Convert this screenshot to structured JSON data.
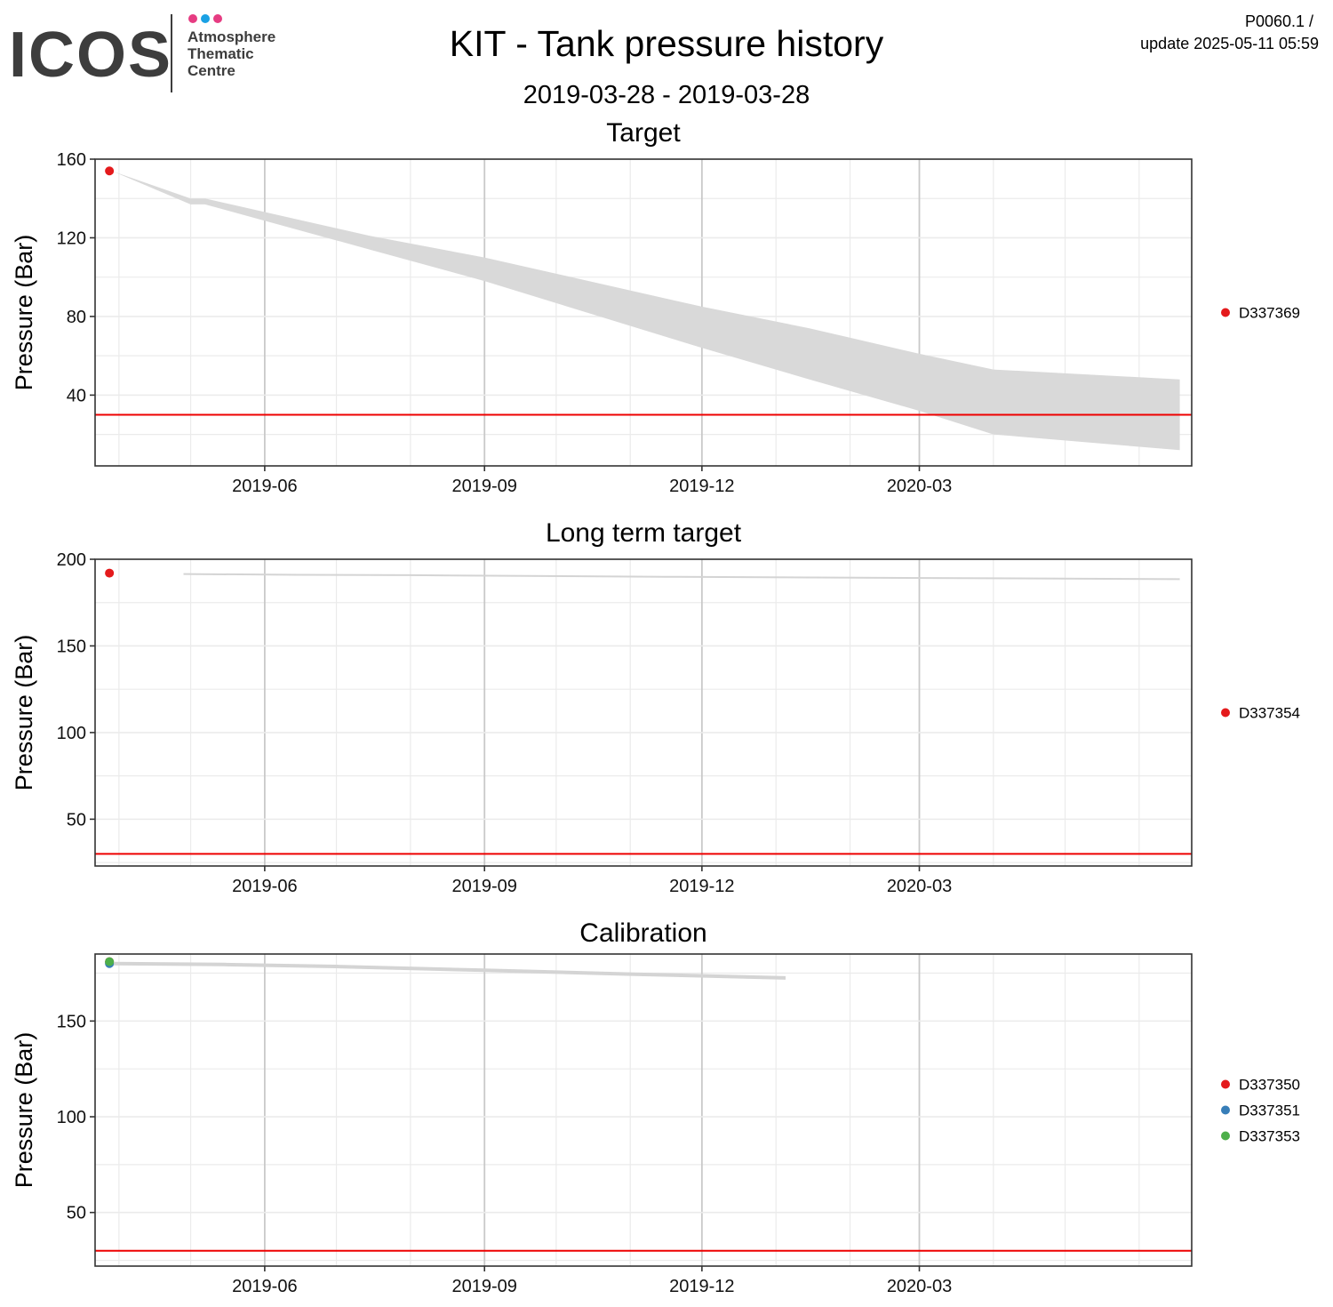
{
  "header": {
    "logo_text": "ICOS",
    "logo_sub": [
      "Atmosphere",
      "Thematic",
      "Centre"
    ],
    "logo_dot_colors": [
      "#e63c82",
      "#1aa1e4",
      "#e63c82"
    ],
    "title": "KIT - Tank pressure history",
    "subtitle": "2019-03-28 - 2019-03-28",
    "code": "P0060.1 /",
    "update": "update  2025-05-11 05:59"
  },
  "colors": {
    "threshold": "#ee0000",
    "band": "#d9d9d9",
    "grid_major": "#c9c9c9",
    "grid_minor": "#ebebeb"
  },
  "chart_data": [
    {
      "type": "area",
      "title": "Target",
      "ylabel": "Pressure (Bar)",
      "xlim": [
        "2019-03-22",
        "2020-06-23"
      ],
      "ylim": [
        4,
        160
      ],
      "yticks": [
        40,
        80,
        120,
        160
      ],
      "xticks": [
        "2019-06",
        "2019-09",
        "2019-12",
        "2020-03"
      ],
      "threshold": 30,
      "grid": true,
      "legend_position": "right",
      "series": [
        {
          "name": "D337369",
          "color": "#e41a1c",
          "points": [
            {
              "x": "2019-03-28",
              "y": 154
            }
          ]
        }
      ],
      "band": {
        "x": [
          "2019-03-29",
          "2019-05-01",
          "2019-05-07",
          "2019-07-15",
          "2019-09-01",
          "2019-12-01",
          "2020-01-15",
          "2020-03-01",
          "2020-04-01",
          "2020-06-18"
        ],
        "upper": [
          154,
          140,
          140,
          121,
          110,
          85,
          74,
          61,
          53,
          48
        ],
        "lower": [
          154,
          137,
          137,
          114,
          98,
          64,
          48,
          32,
          20,
          12
        ]
      }
    },
    {
      "type": "line",
      "title": "Long term target",
      "ylabel": "Pressure (Bar)",
      "xlim": [
        "2019-03-22",
        "2020-06-23"
      ],
      "ylim": [
        23,
        200
      ],
      "yticks": [
        50,
        100,
        150,
        200
      ],
      "xticks": [
        "2019-06",
        "2019-09",
        "2019-12",
        "2020-03"
      ],
      "threshold": 30,
      "grid": true,
      "legend_position": "right",
      "series": [
        {
          "name": "D337354",
          "color": "#e41a1c",
          "points": [
            {
              "x": "2019-03-28",
              "y": 192
            }
          ]
        }
      ],
      "trace": {
        "x": [
          "2019-04-28",
          "2019-06-15",
          "2019-08-01",
          "2019-11-15",
          "2020-06-18"
        ],
        "y": [
          191.5,
          191,
          190.8,
          189.9,
          188.5
        ]
      }
    },
    {
      "type": "line",
      "title": "Calibration",
      "ylabel": "Pressure (Bar)",
      "xlim": [
        "2019-03-22",
        "2020-06-23"
      ],
      "ylim": [
        22,
        185
      ],
      "yticks": [
        50,
        100,
        150
      ],
      "xticks": [
        "2019-06",
        "2019-09",
        "2019-12",
        "2020-03"
      ],
      "threshold": 30,
      "grid": true,
      "legend_position": "right",
      "series": [
        {
          "name": "D337350",
          "color": "#e41a1c",
          "points": [
            {
              "x": "2019-03-28",
              "y": 181
            }
          ]
        },
        {
          "name": "D337351",
          "color": "#377eb8",
          "points": [
            {
              "x": "2019-03-28",
              "y": 180
            }
          ]
        },
        {
          "name": "D337353",
          "color": "#4daf4a",
          "points": [
            {
              "x": "2019-03-28",
              "y": 181
            }
          ]
        }
      ],
      "trace": {
        "x": [
          "2019-03-29",
          "2019-05-15",
          "2019-07-01",
          "2019-09-01",
          "2019-11-01",
          "2020-01-05"
        ],
        "y": [
          180,
          179.5,
          178.5,
          176.5,
          174.5,
          172.5
        ]
      }
    }
  ]
}
